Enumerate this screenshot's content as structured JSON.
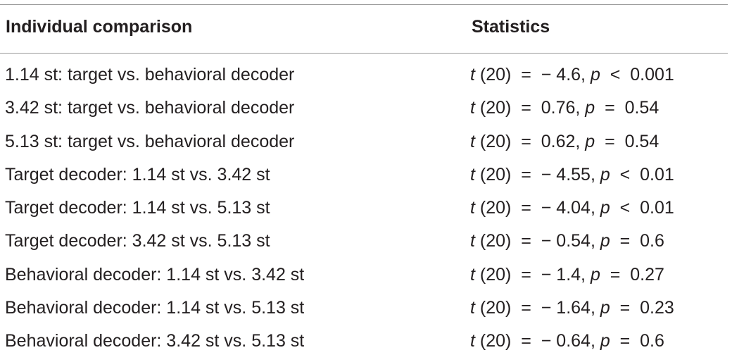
{
  "table": {
    "headers": [
      "Individual comparison",
      "Statistics"
    ],
    "rows": [
      {
        "comparison": "1.14 st: target vs. behavioral decoder",
        "stat_prefix": "t",
        "stat_df": " (20)  =  − 4.6, ",
        "stat_p": "p",
        "stat_tail": "  <  0.001"
      },
      {
        "comparison": "3.42 st: target vs. behavioral decoder",
        "stat_prefix": "t",
        "stat_df": " (20)  =  0.76, ",
        "stat_p": "p",
        "stat_tail": "  =  0.54"
      },
      {
        "comparison": "5.13 st: target vs. behavioral decoder",
        "stat_prefix": "t",
        "stat_df": " (20)  =  0.62, ",
        "stat_p": "p",
        "stat_tail": "  =  0.54"
      },
      {
        "comparison": "Target decoder: 1.14 st vs. 3.42 st",
        "stat_prefix": "t",
        "stat_df": " (20)  =  − 4.55, ",
        "stat_p": "p",
        "stat_tail": "  <  0.01"
      },
      {
        "comparison": "Target decoder: 1.14 st vs. 5.13 st",
        "stat_prefix": "t",
        "stat_df": " (20)  =  − 4.04, ",
        "stat_p": "p",
        "stat_tail": "  <  0.01"
      },
      {
        "comparison": "Target decoder: 3.42 st vs. 5.13 st",
        "stat_prefix": "t",
        "stat_df": " (20)  =  − 0.54, ",
        "stat_p": "p",
        "stat_tail": "  =  0.6"
      },
      {
        "comparison": "Behavioral decoder: 1.14 st vs. 3.42 st",
        "stat_prefix": "t",
        "stat_df": " (20)  =  − 1.4, ",
        "stat_p": "p",
        "stat_tail": "  =  0.27"
      },
      {
        "comparison": "Behavioral decoder: 1.14 st vs. 5.13 st",
        "stat_prefix": "t",
        "stat_df": " (20)  =  − 1.64, ",
        "stat_p": "p",
        "stat_tail": "  =  0.23"
      },
      {
        "comparison": "Behavioral decoder: 3.42 st vs. 5.13 st",
        "stat_prefix": "t",
        "stat_df": " (20)  =  − 0.64, ",
        "stat_p": "p",
        "stat_tail": "  =  0.6"
      }
    ]
  }
}
